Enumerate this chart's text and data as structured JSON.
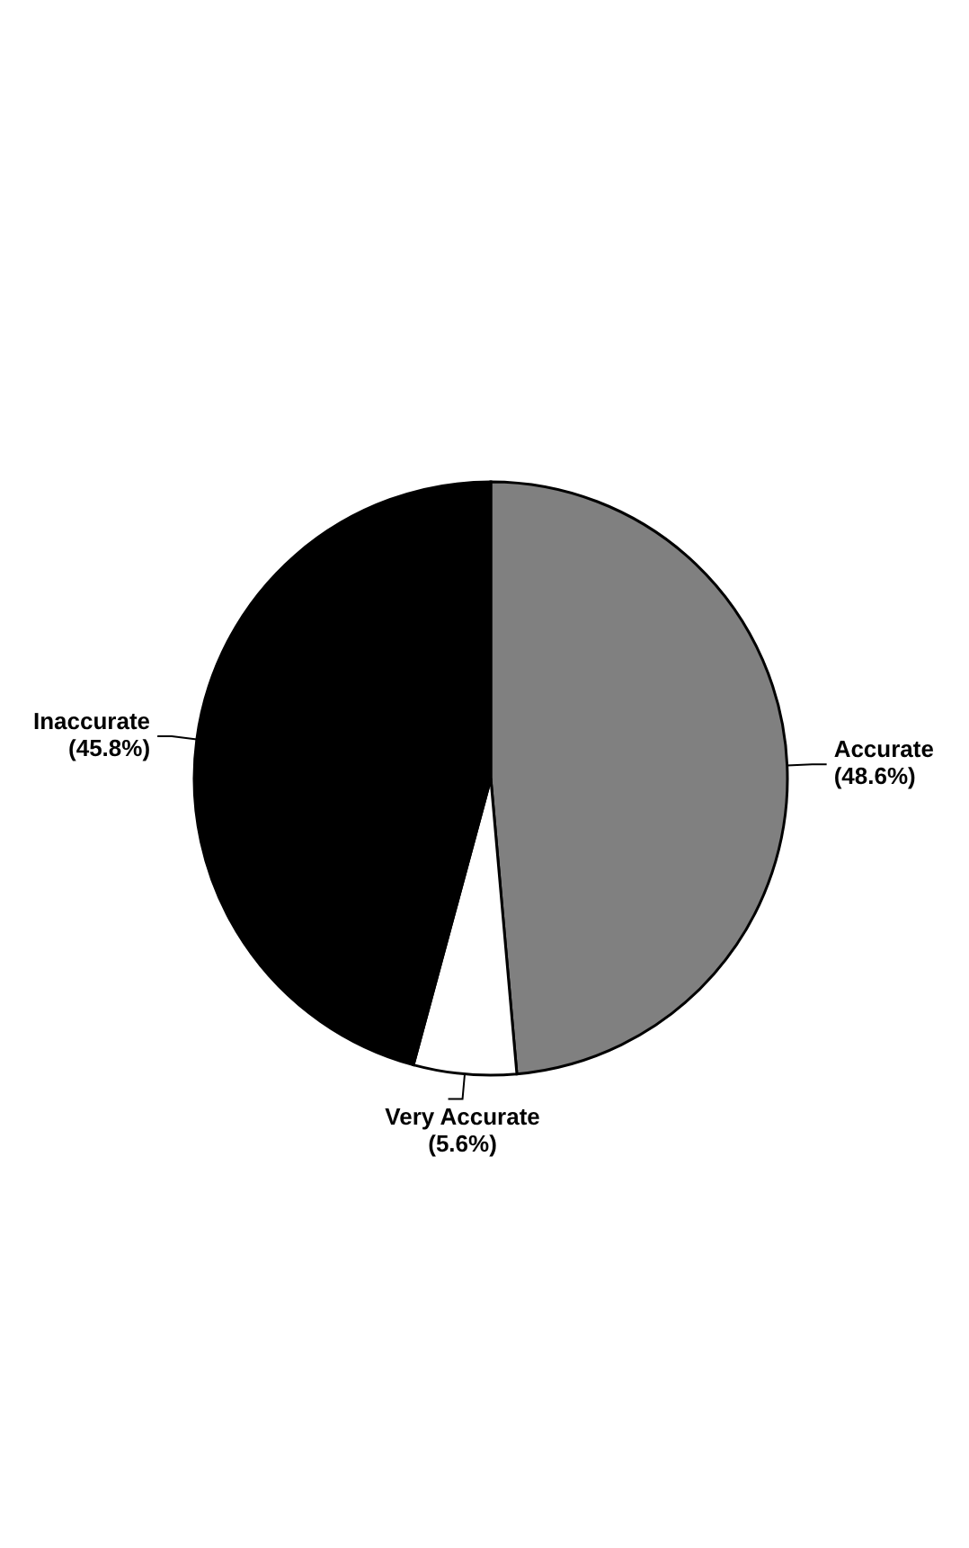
{
  "chart_data": {
    "type": "pie",
    "categories": [
      "Accurate",
      "Very Accurate",
      "Inaccurate"
    ],
    "values": [
      48.6,
      5.6,
      45.8
    ],
    "colors": [
      "#808080",
      "#ffffff",
      "#000000"
    ],
    "value_labels": [
      "(48.6%)",
      "(5.6%)",
      "(45.8%)"
    ],
    "legend": false
  }
}
